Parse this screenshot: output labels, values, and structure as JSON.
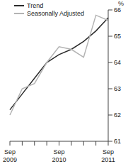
{
  "chart_data": {
    "type": "line",
    "y_label": "%",
    "categories": [
      "Sep 2009",
      null,
      null,
      null,
      "Sep 2010",
      null,
      null,
      null,
      "Sep 2011"
    ],
    "series": [
      {
        "name": "Trend",
        "color": "#2b2b2b",
        "values": [
          62.2,
          62.8,
          63.4,
          64.0,
          64.3,
          64.5,
          64.8,
          65.2,
          65.7
        ]
      },
      {
        "name": "Seasonally Adjusted",
        "color": "#b3b3b3",
        "values": [
          62.0,
          63.0,
          63.2,
          64.0,
          64.6,
          64.5,
          64.2,
          65.8,
          65.6
        ]
      }
    ],
    "ylim": [
      61,
      66
    ],
    "yticks": [
      61,
      62,
      63,
      64,
      65,
      66
    ],
    "grid": false
  }
}
